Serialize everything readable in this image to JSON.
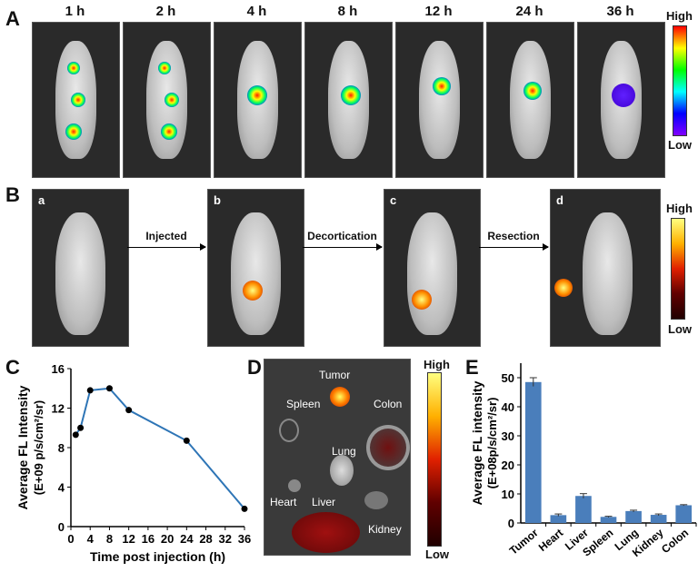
{
  "panel_a": {
    "label": "A",
    "timepoints": [
      "1 h",
      "2 h",
      "4 h",
      "8 h",
      "12 h",
      "24 h",
      "36 h"
    ],
    "colorbar": {
      "high": "High",
      "low": "Low",
      "colors": [
        "#ff0000",
        "#ffff00",
        "#00ff00",
        "#00ffff",
        "#0000ff",
        "#8000ff"
      ]
    }
  },
  "panel_b": {
    "label": "B",
    "subpanels": [
      "a",
      "b",
      "c",
      "d"
    ],
    "arrows": [
      "Injected",
      "Decortication",
      "Resection"
    ],
    "colorbar": {
      "high": "High",
      "low": "Low",
      "colors": [
        "#ffff80",
        "#ffb000",
        "#e02000",
        "#600000",
        "#200000"
      ]
    }
  },
  "panel_d": {
    "label": "D",
    "organs": [
      "Tumor",
      "Spleen",
      "Colon",
      "Lung",
      "Heart",
      "Liver",
      "Kidney"
    ],
    "colorbar": {
      "high": "High",
      "low": "Low"
    }
  },
  "chart_data": [
    {
      "panel": "C",
      "type": "line",
      "xlabel": "Time post injection (h)",
      "ylabel": "Average FL Intensity",
      "ylabel2": "(E+09 p/s/cm²/sr)",
      "x": [
        1,
        2,
        4,
        8,
        12,
        24,
        36
      ],
      "y": [
        9.3,
        10.0,
        13.8,
        14.0,
        11.8,
        8.7,
        1.8
      ],
      "xlim": [
        0,
        36
      ],
      "ylim": [
        0,
        16
      ],
      "xticks": [
        "0",
        "4",
        "8",
        "12",
        "16",
        "20",
        "24",
        "28",
        "32",
        "36"
      ],
      "yticks": [
        "0",
        "4",
        "8",
        "12",
        "16"
      ],
      "line_color": "#2e75b6",
      "grid": false
    },
    {
      "panel": "E",
      "type": "bar",
      "ylabel": "Average FL intensity",
      "ylabel2": "(E+08p/s/cm²/sr)",
      "categories": [
        "Tumor",
        "Heart",
        "Liver",
        "Spleen",
        "Lung",
        "Kidney",
        "Colon"
      ],
      "values": [
        48.5,
        2.7,
        9.3,
        2.1,
        4.1,
        2.8,
        6.1
      ],
      "errors": [
        1.5,
        0.4,
        0.8,
        0.2,
        0.3,
        0.3,
        0.2
      ],
      "ylim": [
        0,
        55
      ],
      "yticks": [
        "0",
        "10",
        "20",
        "30",
        "40",
        "50"
      ],
      "bar_color": "#4a7ebb",
      "grid": false
    }
  ]
}
